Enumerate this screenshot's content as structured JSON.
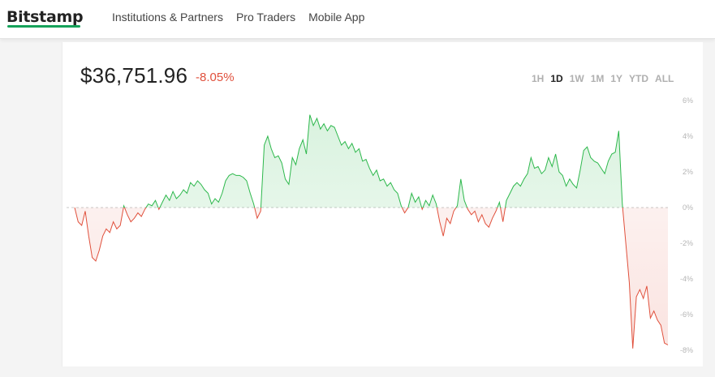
{
  "header": {
    "logo": "Bitstamp",
    "nav": [
      "Institutions & Partners",
      "Pro Traders",
      "Mobile App"
    ]
  },
  "ticker": {
    "price": "$36,751.96",
    "change": "-8.05%"
  },
  "ranges": {
    "items": [
      "1H",
      "1D",
      "1W",
      "1M",
      "1Y",
      "YTD",
      "ALL"
    ],
    "active": "1D"
  },
  "colors": {
    "up": "#2db84c",
    "down": "#e0503c",
    "brand": "#15a25a"
  },
  "chart_data": {
    "type": "area",
    "ylim": [
      -8,
      6
    ],
    "y_ticks": [
      "6%",
      "4%",
      "2%",
      "0%",
      "-2%",
      "-4%",
      "-6%",
      "-8%"
    ],
    "baseline": 0,
    "grid": false,
    "series": [
      {
        "values": [
          0.0,
          -0.8,
          -1.0,
          -0.2,
          -1.6,
          -2.8,
          -3.0,
          -2.4,
          -1.6,
          -1.2,
          -1.4,
          -0.8,
          -1.2,
          -1.0,
          0.1,
          -0.4,
          -0.8,
          -0.6,
          -0.3,
          -0.5,
          -0.1,
          0.2,
          0.1,
          0.4,
          -0.1,
          0.3,
          0.7,
          0.4,
          0.9,
          0.5,
          0.7,
          1.0,
          0.8,
          1.4,
          1.2,
          1.5,
          1.3,
          1.0,
          0.8,
          0.2,
          0.5,
          0.3,
          0.8,
          1.5,
          1.8,
          1.9,
          1.8,
          1.8,
          1.7,
          1.5,
          0.8,
          0.2,
          -0.6,
          -0.2,
          3.5,
          4.0,
          3.3,
          2.8,
          2.9,
          2.5,
          1.6,
          1.3,
          2.8,
          2.4,
          3.3,
          3.8,
          3.0,
          5.2,
          4.6,
          5.0,
          4.4,
          4.7,
          4.3,
          4.6,
          4.5,
          4.0,
          3.5,
          3.7,
          3.3,
          3.6,
          3.1,
          3.3,
          2.6,
          2.7,
          2.2,
          1.8,
          2.1,
          1.5,
          1.6,
          1.2,
          1.4,
          1.0,
          0.8,
          0.1,
          -0.3,
          0.0,
          0.8,
          0.3,
          0.6,
          -0.1,
          0.4,
          0.1,
          0.7,
          0.2,
          -0.8,
          -1.6,
          -0.6,
          -0.9,
          -0.2,
          0.1,
          1.6,
          0.4,
          -0.1,
          -0.4,
          -0.2,
          -0.8,
          -0.4,
          -0.9,
          -1.1,
          -0.6,
          -0.2,
          0.3,
          -0.8,
          0.4,
          0.8,
          1.2,
          1.4,
          1.2,
          1.6,
          1.9,
          2.8,
          2.2,
          2.3,
          1.9,
          2.1,
          2.8,
          2.3,
          3.0,
          2.0,
          1.8,
          1.2,
          1.6,
          1.3,
          1.1,
          2.1,
          3.2,
          3.4,
          2.8,
          2.6,
          2.5,
          2.2,
          1.9,
          2.6,
          3.0,
          3.1,
          4.3,
          0.2,
          -2.0,
          -4.2,
          -7.9,
          -5.0,
          -4.6,
          -5.1,
          -4.4,
          -6.2,
          -5.8,
          -6.3,
          -6.6,
          -7.6,
          -7.7
        ]
      }
    ]
  }
}
